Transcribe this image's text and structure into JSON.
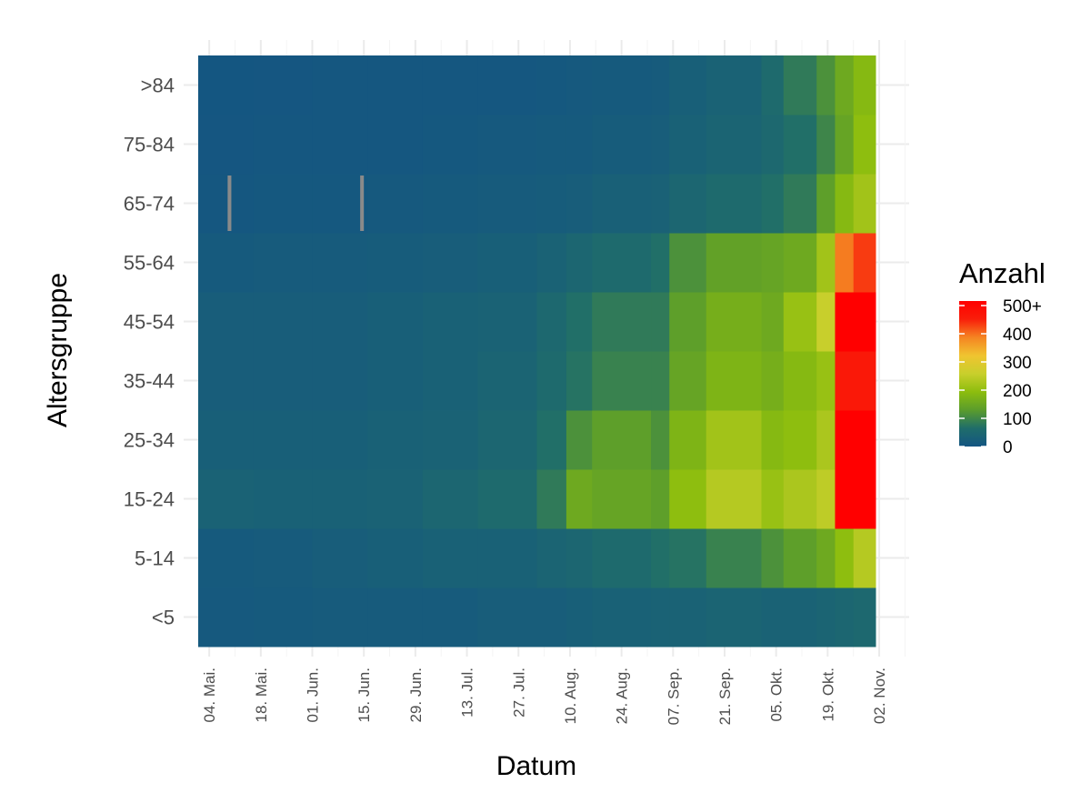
{
  "chart_data": {
    "type": "heatmap",
    "xlabel": "Datum",
    "ylabel": "Altersgruppe",
    "x_range": [
      "2020-05-01",
      "2020-10-31"
    ],
    "x_ticks": [
      "04. Mai.",
      "18. Mai.",
      "01. Jun.",
      "15. Jun.",
      "29. Jun.",
      "13. Jul.",
      "27. Jul.",
      "10. Aug.",
      "24. Aug.",
      "07. Sep.",
      "21. Sep.",
      "05. Okt.",
      "19. Okt.",
      "02. Nov."
    ],
    "age_groups": [
      "<5",
      "5-14",
      "15-24",
      "25-34",
      "35-44",
      "45-54",
      "55-64",
      "65-74",
      "75-84",
      ">84"
    ],
    "legend": {
      "title": "Anzahl",
      "labels": [
        "500+",
        "400",
        "300",
        "200",
        "100",
        "0"
      ],
      "max": 500
    },
    "colorscale": [
      "#145582",
      "#1f6d6a",
      "#5a9c2c",
      "#8cbd0e",
      "#c8cf2c",
      "#f0c430",
      "#f58422",
      "#f91e0a",
      "#ff0000"
    ],
    "missing_color": "#8a8a8a",
    "period_starts": [
      "2020-05-01",
      "2020-05-16",
      "2020-06-01",
      "2020-06-16",
      "2020-07-01",
      "2020-07-16",
      "2020-08-01",
      "2020-08-09",
      "2020-08-16",
      "2020-09-01",
      "2020-09-06",
      "2020-09-16",
      "2020-10-01",
      "2020-10-07",
      "2020-10-16",
      "2020-10-21",
      "2020-10-26"
    ],
    "series": [
      {
        "name": "<5",
        "values": [
          10,
          12,
          15,
          15,
          15,
          20,
          20,
          25,
          30,
          35,
          35,
          40,
          35,
          35,
          40,
          45,
          50
        ]
      },
      {
        "name": "5-14",
        "values": [
          12,
          15,
          20,
          25,
          30,
          30,
          40,
          45,
          55,
          65,
          70,
          90,
          110,
          130,
          150,
          190,
          230
        ]
      },
      {
        "name": "15-24",
        "values": [
          35,
          30,
          30,
          35,
          45,
          55,
          80,
          150,
          140,
          130,
          190,
          230,
          200,
          220,
          240,
          500,
          500
        ]
      },
      {
        "name": "25-34",
        "values": [
          25,
          25,
          25,
          30,
          35,
          45,
          65,
          110,
          130,
          110,
          170,
          210,
          180,
          190,
          220,
          500,
          500
        ]
      },
      {
        "name": "35-44",
        "values": [
          20,
          20,
          20,
          25,
          30,
          40,
          55,
          70,
          90,
          90,
          140,
          170,
          160,
          180,
          200,
          450,
          450
        ]
      },
      {
        "name": "45-54",
        "values": [
          20,
          20,
          20,
          25,
          30,
          35,
          50,
          65,
          80,
          80,
          130,
          160,
          150,
          200,
          250,
          500,
          500
        ]
      },
      {
        "name": "55-64",
        "values": [
          12,
          15,
          15,
          18,
          22,
          25,
          35,
          45,
          55,
          65,
          110,
          135,
          140,
          150,
          210,
          380,
          420
        ]
      },
      {
        "name": "65-74",
        "values": [
          6,
          8,
          8,
          10,
          12,
          15,
          18,
          22,
          28,
          32,
          45,
          55,
          65,
          80,
          130,
          180,
          210
        ]
      },
      {
        "name": "75-84",
        "values": [
          3,
          4,
          5,
          6,
          8,
          10,
          12,
          14,
          18,
          22,
          30,
          40,
          50,
          65,
          95,
          140,
          190
        ]
      },
      {
        "name": ">84",
        "values": [
          2,
          3,
          4,
          4,
          5,
          6,
          8,
          10,
          12,
          15,
          25,
          35,
          55,
          80,
          110,
          150,
          180
        ]
      }
    ],
    "missing_days": [
      {
        "group": "65-74",
        "dates": [
          "2020-05-09",
          "2020-06-14"
        ]
      }
    ],
    "grid": true,
    "legend_position": "right"
  }
}
